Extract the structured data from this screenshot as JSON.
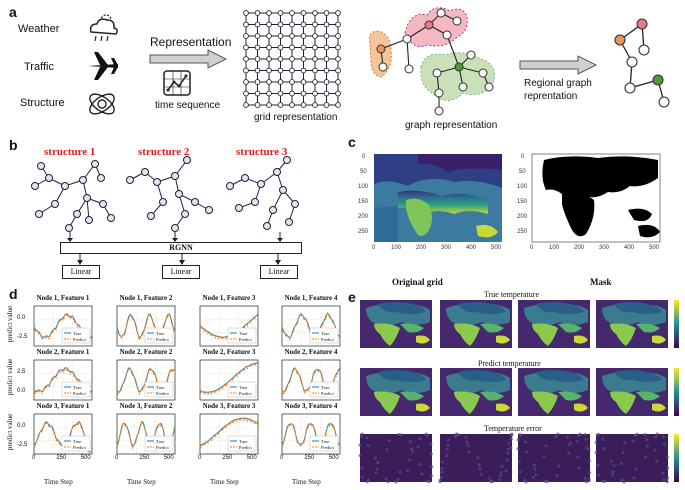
{
  "panels": {
    "a": "a",
    "b": "b",
    "c": "c",
    "d": "d",
    "e": "e"
  },
  "panel_a": {
    "inputs": [
      "Weather",
      "Traffic",
      "Structure"
    ],
    "representation": "Representation",
    "time_sequence": "time sequence",
    "grid": "grid representation",
    "graph": "graph representation",
    "regional1": "Regional graph",
    "regional2": "reprentation"
  },
  "panel_b": {
    "structures": [
      "structure 1",
      "structure 2",
      "structure 3"
    ],
    "rgnn": "RGNN",
    "linear": [
      "Linear",
      "Linear",
      "Linear"
    ]
  },
  "panel_c": {
    "y_ticks": [
      "0",
      "50",
      "100",
      "150",
      "200",
      "250"
    ],
    "x_ticks": [
      "0",
      "100",
      "200",
      "300",
      "400",
      "500"
    ]
  },
  "panel_d": {
    "ylabel": "predict value",
    "xlabel": "Time Step",
    "titles": [
      [
        "Node 1, Feature 1",
        "Node 1, Feature 2",
        "Node 1, Feature 3",
        "Node 1, Feature 4"
      ],
      [
        "Node 2, Feature 1",
        "Node 2, Feature 2",
        "Node 2, Feature 3",
        "Node 2, Feature 4"
      ],
      [
        "Node 3, Feature 1",
        "Node 3, Feature 2",
        "Node 3, Feature 3",
        "Node 3, Feature 4"
      ]
    ],
    "legend_true": "True",
    "legend_pred": "Predict",
    "x_ticks": [
      "0",
      "250",
      "500"
    ],
    "row_yticks": [
      [
        "0.0",
        "-2.5"
      ],
      [
        "2.5",
        "0.0"
      ],
      [
        "0.0",
        "-2.5"
      ]
    ],
    "colors": {
      "true": "#1f77b4",
      "predict": "#ff7f0e"
    }
  },
  "panel_e": {
    "col_headers": [
      "Original grid",
      "Mask"
    ],
    "row_titles": [
      "True temperature",
      "Predict temperature",
      "Temperature error"
    ]
  }
}
